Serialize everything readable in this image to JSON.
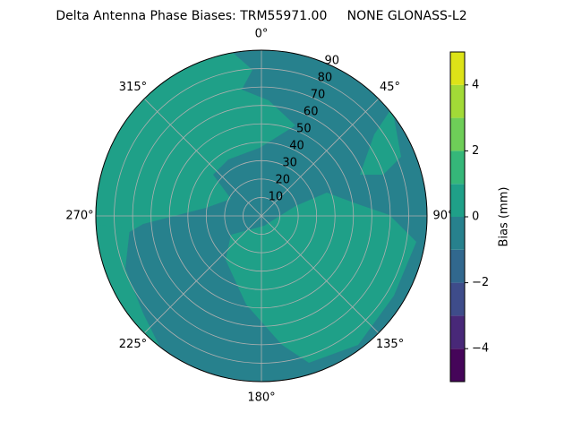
{
  "chart_data": {
    "type": "polar_contour",
    "title": "Delta Antenna Phase Biases: TRM55971.00     NONE GLONASS-L2",
    "rlim": [
      0,
      90
    ],
    "rticks": [
      10,
      20,
      30,
      40,
      50,
      60,
      70,
      80,
      90
    ],
    "thetaticks": [
      {
        "value": 0,
        "label": "0°"
      },
      {
        "value": 45,
        "label": "45°"
      },
      {
        "value": 90,
        "label": "90°"
      },
      {
        "value": 135,
        "label": "135°"
      },
      {
        "value": 180,
        "label": "180°"
      },
      {
        "value": 225,
        "label": "225°"
      },
      {
        "value": 270,
        "label": "270°"
      },
      {
        "value": 315,
        "label": "315°"
      }
    ],
    "grid": true,
    "colorbar": {
      "label": "Bias (mm)",
      "levels": [
        -5,
        -4,
        -3,
        -2,
        -1,
        0,
        1,
        2,
        3,
        4,
        5
      ],
      "colors": [
        "#450559",
        "#482878",
        "#3e4c8a",
        "#31688e",
        "#27818d",
        "#1fa088",
        "#35b779",
        "#6ece58",
        "#a2da37",
        "#dde318"
      ],
      "ticks": [
        {
          "value": -4,
          "label": "−4"
        },
        {
          "value": -2,
          "label": "−2"
        },
        0,
        2,
        4
      ]
    }
  }
}
